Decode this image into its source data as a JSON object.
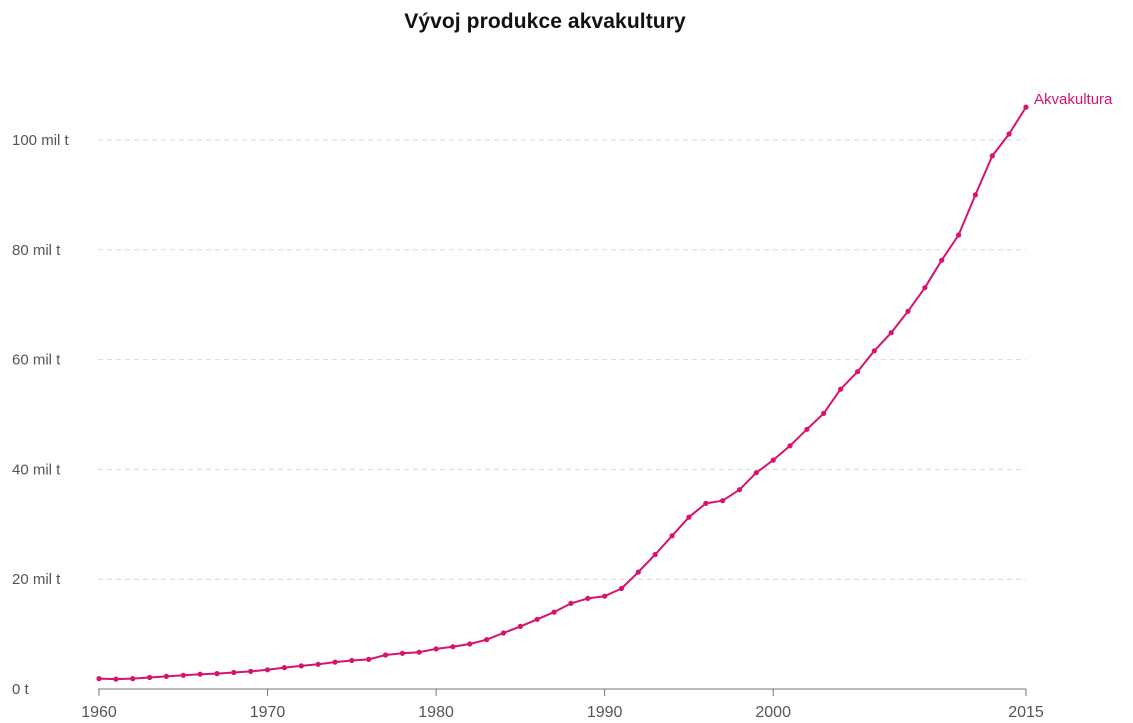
{
  "chart_data": {
    "type": "line",
    "title": "Vývoj produkce akvakultury",
    "xlabel": "",
    "ylabel": "",
    "xlim": [
      1960,
      2015
    ],
    "ylim": [
      0,
      110
    ],
    "grid": true,
    "y_ticks": [
      {
        "value": 0,
        "label": "0 t"
      },
      {
        "value": 20,
        "label": "20 mil t"
      },
      {
        "value": 40,
        "label": "40 mil t"
      },
      {
        "value": 60,
        "label": "60 mil t"
      },
      {
        "value": 80,
        "label": "80 mil t"
      },
      {
        "value": 100,
        "label": "100 mil t"
      }
    ],
    "x_ticks": [
      {
        "value": 1960,
        "label": "1960"
      },
      {
        "value": 1970,
        "label": "1970"
      },
      {
        "value": 1980,
        "label": "1980"
      },
      {
        "value": 1990,
        "label": "1990"
      },
      {
        "value": 2000,
        "label": "2000"
      },
      {
        "value": 2015,
        "label": "2015"
      }
    ],
    "series": [
      {
        "name": "Akvakultura",
        "color": "#d6136f",
        "x": [
          1960,
          1961,
          1962,
          1963,
          1964,
          1965,
          1966,
          1967,
          1968,
          1969,
          1970,
          1971,
          1972,
          1973,
          1974,
          1975,
          1976,
          1977,
          1978,
          1979,
          1980,
          1981,
          1982,
          1983,
          1984,
          1985,
          1986,
          1987,
          1988,
          1989,
          1990,
          1991,
          1992,
          1993,
          1994,
          1995,
          1996,
          1997,
          1998,
          1999,
          2000,
          2001,
          2002,
          2003,
          2004,
          2005,
          2006,
          2007,
          2008,
          2009,
          2010,
          2011,
          2012,
          2013,
          2014,
          2015
        ],
        "values": [
          1.9,
          1.8,
          1.9,
          2.1,
          2.3,
          2.5,
          2.7,
          2.8,
          3.0,
          3.2,
          3.5,
          3.9,
          4.2,
          4.5,
          4.9,
          5.2,
          5.4,
          6.2,
          6.5,
          6.7,
          7.3,
          7.7,
          8.2,
          9.0,
          10.2,
          11.4,
          12.7,
          14.0,
          15.6,
          16.5,
          16.9,
          18.3,
          21.3,
          24.5,
          27.9,
          31.3,
          33.8,
          34.3,
          36.3,
          39.4,
          41.7,
          44.3,
          47.3,
          50.2,
          54.6,
          57.8,
          61.6,
          64.9,
          68.8,
          73.1,
          78.1,
          82.7,
          90.0,
          97.1,
          101.1,
          106.0
        ]
      }
    ]
  }
}
